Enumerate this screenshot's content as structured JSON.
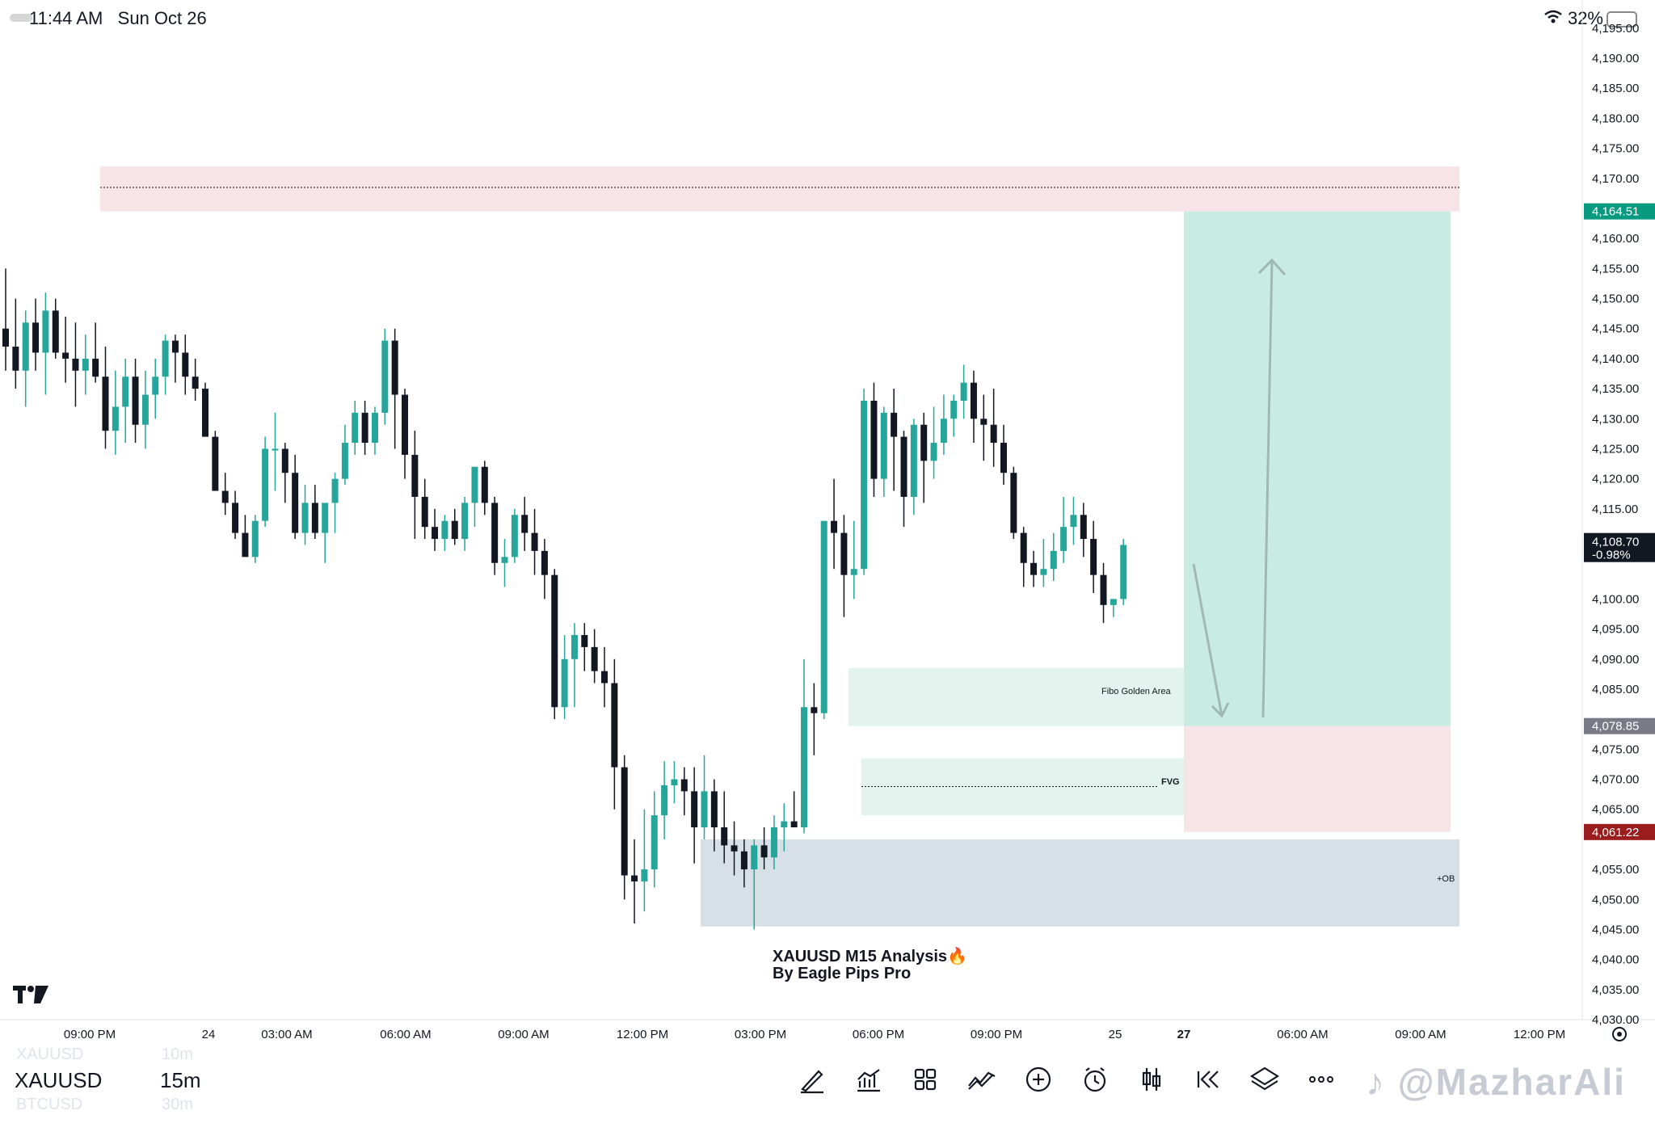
{
  "status_bar": {
    "time": "11:44 AM",
    "date": "Sun Oct 26",
    "battery": "32%"
  },
  "annotation": {
    "line1": "XAUUSD M15 Analysis🔥",
    "line2": "By Eagle Pips Pro"
  },
  "zones": {
    "fibo": "Fibo Golden Area",
    "fvg": "FVG",
    "ob": "+OB"
  },
  "price_axis": {
    "ticks": [
      "4,195.00",
      "4,190.00",
      "4,185.00",
      "4,180.00",
      "4,175.00",
      "4,170.00",
      "4,160.00",
      "4,155.00",
      "4,150.00",
      "4,145.00",
      "4,140.00",
      "4,135.00",
      "4,130.00",
      "4,125.00",
      "4,120.00",
      "4,115.00",
      "4,100.00",
      "4,095.00",
      "4,090.00",
      "4,085.00",
      "4,075.00",
      "4,070.00",
      "4,065.00",
      "4,055.00",
      "4,050.00",
      "4,045.00",
      "4,040.00",
      "4,035.00",
      "4,030.00"
    ],
    "tick_values": [
      4195,
      4190,
      4185,
      4180,
      4175,
      4170,
      4160,
      4155,
      4150,
      4145,
      4140,
      4135,
      4130,
      4125,
      4120,
      4115,
      4100,
      4095,
      4090,
      4085,
      4075,
      4070,
      4065,
      4055,
      4050,
      4045,
      4040,
      4035,
      4030
    ],
    "tp_label": "4,164.51",
    "tp_value": 4164.51,
    "current_label": "4,108.70",
    "current_change": "-0.98%",
    "current_value": 4108.7,
    "entry_label": "4,078.85",
    "entry_value": 4078.85,
    "sl_label": "4,061.22",
    "sl_value": 4061.22
  },
  "time_axis": {
    "labels": [
      "09:00 PM",
      "24",
      "03:00 AM",
      "06:00 AM",
      "09:00 AM",
      "12:00 PM",
      "03:00 PM",
      "06:00 PM",
      "09:00 PM",
      "25",
      "27",
      "06:00 AM",
      "09:00 AM",
      "12:00 PM"
    ]
  },
  "symbols": {
    "above": "XAUUSD",
    "above_tf": "10m",
    "current": "XAUUSD",
    "current_tf": "15m",
    "below": "BTCUSD",
    "below_tf": "30m"
  },
  "toolbar": [
    "draw-icon",
    "indicators-icon",
    "layout-icon",
    "strategy-icon",
    "add-icon",
    "alert-icon",
    "candle-type-icon",
    "replay-icon",
    "layers-icon",
    "more-icon"
  ],
  "watermark": "@MazharAli",
  "colors": {
    "up": "#26a69a",
    "down": "#131722",
    "tp_zone": "#c8ebe2",
    "sl_zone": "#f6e4e6",
    "ob_zone": "#d6e0e6",
    "fvg_zone": "#e3f4ef",
    "supply_zone": "#f6e4e6"
  },
  "chart_data": {
    "type": "candlestick",
    "symbol": "XAUUSD",
    "timeframe": "15m",
    "ylim": [
      4030,
      4197
    ],
    "zones": [
      {
        "name": "supply",
        "from": 4164.5,
        "to": 4172
      },
      {
        "name": "Fibo Golden Area",
        "from": 4078.85,
        "to": 4088.5
      },
      {
        "name": "FVG",
        "from": 4064,
        "to": 4073.5
      },
      {
        "name": "+OB",
        "from": 4045.5,
        "to": 4060
      },
      {
        "name": "long-target",
        "from": 4078.85,
        "to": 4164.51
      },
      {
        "name": "long-stop",
        "from": 4061.22,
        "to": 4078.85
      }
    ],
    "candles": [
      [
        4145,
        4155,
        4138,
        4142
      ],
      [
        4142,
        4150,
        4135,
        4138
      ],
      [
        4138,
        4148,
        4132,
        4146
      ],
      [
        4146,
        4150,
        4138,
        4141
      ],
      [
        4141,
        4151,
        4134,
        4148
      ],
      [
        4148,
        4150,
        4140,
        4141
      ],
      [
        4141,
        4147,
        4136,
        4140
      ],
      [
        4140,
        4146,
        4132,
        4138
      ],
      [
        4138,
        4144,
        4134,
        4140
      ],
      [
        4140,
        4146,
        4136,
        4137
      ],
      [
        4137,
        4142,
        4125,
        4128
      ],
      [
        4128,
        4138,
        4124,
        4132
      ],
      [
        4132,
        4140,
        4126,
        4137
      ],
      [
        4137,
        4140,
        4126,
        4129
      ],
      [
        4129,
        4138,
        4125,
        4134
      ],
      [
        4134,
        4140,
        4130,
        4137
      ],
      [
        4137,
        4144,
        4134,
        4143
      ],
      [
        4143,
        4144,
        4136,
        4141
      ],
      [
        4141,
        4144,
        4134,
        4137
      ],
      [
        4137,
        4140,
        4133,
        4135
      ],
      [
        4135,
        4136,
        4128,
        4127
      ],
      [
        4127,
        4128,
        4118,
        4118
      ],
      [
        4118,
        4121,
        4114,
        4116
      ],
      [
        4116,
        4118,
        4110,
        4111
      ],
      [
        4111,
        4114,
        4107,
        4107
      ],
      [
        4107,
        4114,
        4106,
        4113
      ],
      [
        4113,
        4127,
        4112,
        4125
      ],
      [
        4125,
        4131,
        4118,
        4125
      ],
      [
        4125,
        4126,
        4116,
        4121
      ],
      [
        4121,
        4124,
        4110,
        4111
      ],
      [
        4111,
        4119,
        4109,
        4116
      ],
      [
        4116,
        4119,
        4110,
        4111
      ],
      [
        4111,
        4116,
        4106,
        4116
      ],
      [
        4116,
        4121,
        4111,
        4120
      ],
      [
        4120,
        4129,
        4119,
        4126
      ],
      [
        4126,
        4133,
        4124,
        4131
      ],
      [
        4131,
        4133,
        4124,
        4126
      ],
      [
        4126,
        4132,
        4124,
        4131
      ],
      [
        4131,
        4145,
        4129,
        4143
      ],
      [
        4143,
        4145,
        4125,
        4134
      ],
      [
        4134,
        4135,
        4120,
        4124
      ],
      [
        4124,
        4128,
        4110,
        4117
      ],
      [
        4117,
        4120,
        4110,
        4112
      ],
      [
        4112,
        4115,
        4108,
        4110
      ],
      [
        4110,
        4114,
        4108,
        4113
      ],
      [
        4113,
        4115,
        4109,
        4110
      ],
      [
        4110,
        4117,
        4108,
        4116
      ],
      [
        4116,
        4122,
        4112,
        4122
      ],
      [
        4122,
        4123,
        4114,
        4116
      ],
      [
        4116,
        4117,
        4104,
        4106
      ],
      [
        4106,
        4110,
        4102,
        4107
      ],
      [
        4107,
        4115,
        4106,
        4114
      ],
      [
        4114,
        4117,
        4108,
        4111
      ],
      [
        4111,
        4115,
        4104,
        4108
      ],
      [
        4108,
        4110,
        4100,
        4104
      ],
      [
        4104,
        4105,
        4080,
        4082
      ],
      [
        4082,
        4094,
        4080,
        4090
      ],
      [
        4090,
        4096,
        4082,
        4094
      ],
      [
        4094,
        4096,
        4088,
        4092
      ],
      [
        4092,
        4095,
        4086,
        4088
      ],
      [
        4088,
        4092,
        4082,
        4086
      ],
      [
        4086,
        4090,
        4065,
        4072
      ],
      [
        4072,
        4074,
        4050,
        4054
      ],
      [
        4054,
        4060,
        4046,
        4053
      ],
      [
        4053,
        4065,
        4048,
        4055
      ],
      [
        4055,
        4068,
        4052,
        4064
      ],
      [
        4064,
        4073,
        4060,
        4069
      ],
      [
        4069,
        4073,
        4066,
        4070
      ],
      [
        4070,
        4072,
        4064,
        4068
      ],
      [
        4068,
        4072,
        4056,
        4062
      ],
      [
        4062,
        4074,
        4060,
        4068
      ],
      [
        4068,
        4070,
        4058,
        4062
      ],
      [
        4062,
        4068,
        4056,
        4059
      ],
      [
        4059,
        4063,
        4054,
        4058
      ],
      [
        4058,
        4060,
        4052,
        4055
      ],
      [
        4055,
        4060,
        4045,
        4059
      ],
      [
        4059,
        4062,
        4055,
        4057
      ],
      [
        4057,
        4064,
        4055,
        4062
      ],
      [
        4062,
        4066,
        4058,
        4063
      ],
      [
        4063,
        4068,
        4062,
        4062
      ],
      [
        4062,
        4090,
        4061,
        4082
      ],
      [
        4082,
        4086,
        4074,
        4081
      ],
      [
        4081,
        4113,
        4080,
        4113
      ],
      [
        4113,
        4120,
        4105,
        4111
      ],
      [
        4111,
        4114,
        4097,
        4104
      ],
      [
        4104,
        4113,
        4100,
        4105
      ],
      [
        4105,
        4135,
        4104,
        4133
      ],
      [
        4133,
        4136,
        4117,
        4120
      ],
      [
        4120,
        4132,
        4117,
        4131
      ],
      [
        4131,
        4135,
        4118,
        4127
      ],
      [
        4127,
        4128,
        4112,
        4117
      ],
      [
        4117,
        4130,
        4114,
        4129
      ],
      [
        4129,
        4131,
        4116,
        4123
      ],
      [
        4123,
        4132,
        4120,
        4126
      ],
      [
        4126,
        4134,
        4124,
        4130
      ],
      [
        4130,
        4134,
        4127,
        4133
      ],
      [
        4133,
        4139,
        4130,
        4136
      ],
      [
        4136,
        4138,
        4126,
        4130
      ],
      [
        4130,
        4134,
        4123,
        4129
      ],
      [
        4129,
        4135,
        4122,
        4126
      ],
      [
        4126,
        4129,
        4119,
        4121
      ],
      [
        4121,
        4122,
        4110,
        4111
      ],
      [
        4111,
        4112,
        4102,
        4106
      ],
      [
        4106,
        4108,
        4102,
        4104
      ],
      [
        4104,
        4110,
        4102,
        4105
      ],
      [
        4105,
        4111,
        4103,
        4108
      ],
      [
        4108,
        4117,
        4106,
        4112
      ],
      [
        4112,
        4117,
        4109,
        4114
      ],
      [
        4114,
        4116,
        4107,
        4110
      ],
      [
        4110,
        4113,
        4101,
        4104
      ],
      [
        4104,
        4106,
        4096,
        4099
      ],
      [
        4099,
        4100,
        4097,
        4100
      ],
      [
        4100,
        4110,
        4099,
        4109
      ]
    ]
  }
}
